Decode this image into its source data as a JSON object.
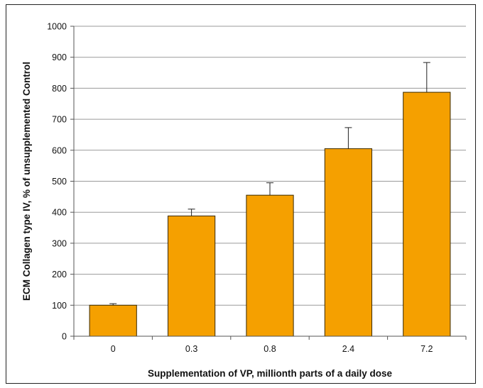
{
  "chart_data": {
    "type": "bar",
    "title": "",
    "xlabel": "Supplementation of VP, millionth parts of a daily dose",
    "ylabel": "ECM Collagen type IV, % of unsupplemented Control",
    "categories": [
      "0",
      "0.3",
      "0.8",
      "2.4",
      "7.2"
    ],
    "values": [
      100,
      388,
      455,
      605,
      787
    ],
    "error_upper": [
      105,
      410,
      495,
      673,
      883
    ],
    "ylim": [
      0,
      1000
    ],
    "yticks": [
      "0",
      "100",
      "200",
      "300",
      "400",
      "500",
      "600",
      "700",
      "800",
      "900",
      "1000"
    ],
    "grid": true,
    "legend": "none",
    "colors": {
      "bar_fill": "#F5A000",
      "bar_stroke": "#3a2a00",
      "grid": "#9a9a9a",
      "axis": "#555555"
    }
  }
}
